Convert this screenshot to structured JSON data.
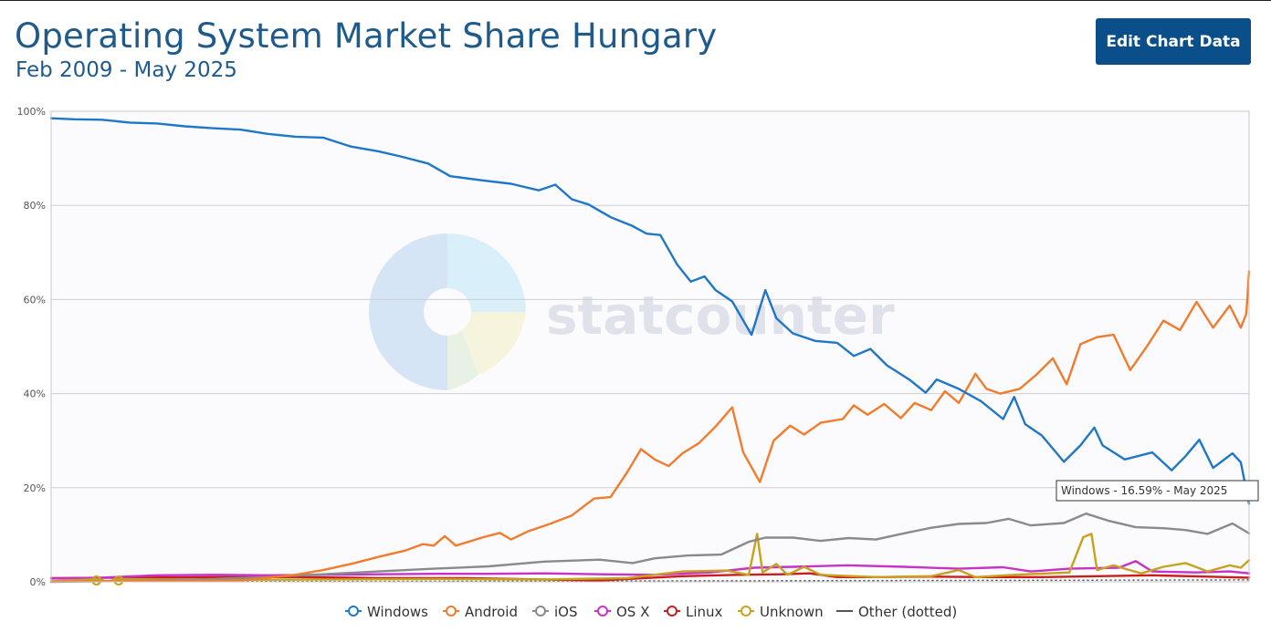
{
  "header": {
    "title": "Operating System Market Share Hungary",
    "subtitle": "Feb 2009 - May 2025",
    "edit_button": "Edit Chart Data"
  },
  "watermark": "statcounter",
  "tooltip": "Windows - 16.59% - May 2025",
  "chart_data": {
    "type": "line",
    "title": "Operating System Market Share Hungary",
    "subtitle": "Feb 2009 - May 2025",
    "x_range": [
      "Feb 2009",
      "May 2025"
    ],
    "ylim": [
      0,
      100
    ],
    "y_ticks": [
      "0%",
      "20%",
      "40%",
      "60%",
      "80%",
      "100%"
    ],
    "y_tick_values": [
      0,
      20,
      40,
      60,
      80,
      100
    ],
    "grid": true,
    "legend_position": "bottom",
    "series": [
      {
        "name": "Windows",
        "color": "#1f77c8",
        "dotted": false,
        "points": [
          [
            2009.08,
            98.5
          ],
          [
            2009.5,
            98.3
          ],
          [
            2010.0,
            98.2
          ],
          [
            2010.5,
            97.6
          ],
          [
            2011.0,
            97.4
          ],
          [
            2011.5,
            96.8
          ],
          [
            2012.0,
            96.4
          ],
          [
            2012.5,
            96.1
          ],
          [
            2013.0,
            95.2
          ],
          [
            2013.5,
            94.6
          ],
          [
            2014.0,
            94.4
          ],
          [
            2014.5,
            92.5
          ],
          [
            2015.0,
            91.5
          ],
          [
            2015.4,
            90.4
          ],
          [
            2015.9,
            88.9
          ],
          [
            2016.3,
            86.2
          ],
          [
            2016.9,
            85.3
          ],
          [
            2017.4,
            84.6
          ],
          [
            2017.9,
            83.2
          ],
          [
            2018.2,
            84.4
          ],
          [
            2018.5,
            81.3
          ],
          [
            2018.8,
            80.2
          ],
          [
            2019.2,
            77.5
          ],
          [
            2019.6,
            75.6
          ],
          [
            2019.85,
            74.0
          ],
          [
            2020.1,
            73.7
          ],
          [
            2020.4,
            67.5
          ],
          [
            2020.65,
            63.8
          ],
          [
            2020.9,
            64.9
          ],
          [
            2021.1,
            62.0
          ],
          [
            2021.4,
            59.6
          ],
          [
            2021.75,
            52.5
          ],
          [
            2022.0,
            62.0
          ],
          [
            2022.2,
            56.0
          ],
          [
            2022.5,
            52.8
          ],
          [
            2022.9,
            51.2
          ],
          [
            2023.3,
            50.8
          ],
          [
            2023.6,
            48.0
          ],
          [
            2023.9,
            49.5
          ],
          [
            2024.2,
            46.0
          ],
          [
            2024.6,
            43.0
          ],
          [
            2024.9,
            40.2
          ],
          [
            2025.1,
            43.0
          ],
          [
            2025.5,
            41.0
          ],
          [
            2025.9,
            38.4
          ],
          [
            2026.3,
            34.6
          ],
          [
            2026.5,
            39.3
          ],
          [
            2026.7,
            33.5
          ],
          [
            2027.0,
            31.1
          ],
          [
            2027.4,
            25.5
          ],
          [
            2027.7,
            29.0
          ],
          [
            2027.95,
            32.8
          ],
          [
            2028.1,
            29.0
          ],
          [
            2028.5,
            26.0
          ],
          [
            2029.0,
            27.5
          ],
          [
            2029.35,
            23.7
          ],
          [
            2029.6,
            26.7
          ],
          [
            2029.85,
            30.2
          ],
          [
            2030.1,
            24.2
          ],
          [
            2030.45,
            27.3
          ],
          [
            2030.6,
            25.4
          ],
          [
            2030.75,
            16.59
          ]
        ]
      },
      {
        "name": "Android",
        "color": "#f07c2c",
        "dotted": false,
        "points": [
          [
            2009.08,
            0.1
          ],
          [
            2012.5,
            0.3
          ],
          [
            2013.5,
            1.5
          ],
          [
            2014.0,
            2.5
          ],
          [
            2014.5,
            3.8
          ],
          [
            2015.0,
            5.3
          ],
          [
            2015.5,
            6.7
          ],
          [
            2015.8,
            8.0
          ],
          [
            2016.0,
            7.7
          ],
          [
            2016.2,
            9.7
          ],
          [
            2016.4,
            7.7
          ],
          [
            2016.9,
            9.5
          ],
          [
            2017.2,
            10.4
          ],
          [
            2017.4,
            9.0
          ],
          [
            2017.7,
            10.7
          ],
          [
            2018.1,
            12.3
          ],
          [
            2018.5,
            14.1
          ],
          [
            2018.9,
            17.7
          ],
          [
            2019.2,
            18.0
          ],
          [
            2019.5,
            23.3
          ],
          [
            2019.75,
            28.2
          ],
          [
            2020.0,
            26.0
          ],
          [
            2020.25,
            24.6
          ],
          [
            2020.5,
            27.3
          ],
          [
            2020.8,
            29.5
          ],
          [
            2021.1,
            33.0
          ],
          [
            2021.4,
            37.1
          ],
          [
            2021.6,
            27.5
          ],
          [
            2021.9,
            21.2
          ],
          [
            2022.15,
            30.0
          ],
          [
            2022.45,
            33.2
          ],
          [
            2022.7,
            31.3
          ],
          [
            2023.0,
            33.8
          ],
          [
            2023.4,
            34.6
          ],
          [
            2023.6,
            37.5
          ],
          [
            2023.85,
            35.5
          ],
          [
            2024.15,
            37.8
          ],
          [
            2024.45,
            34.8
          ],
          [
            2024.7,
            38.0
          ],
          [
            2025.0,
            36.5
          ],
          [
            2025.25,
            40.5
          ],
          [
            2025.5,
            38.0
          ],
          [
            2025.8,
            44.2
          ],
          [
            2026.0,
            41.0
          ],
          [
            2026.25,
            40.0
          ],
          [
            2026.6,
            41.0
          ],
          [
            2026.9,
            44.0
          ],
          [
            2027.2,
            47.5
          ],
          [
            2027.45,
            42.0
          ],
          [
            2027.7,
            50.5
          ],
          [
            2028.0,
            52.0
          ],
          [
            2028.3,
            52.5
          ],
          [
            2028.6,
            45.0
          ],
          [
            2028.9,
            50.0
          ],
          [
            2029.2,
            55.5
          ],
          [
            2029.5,
            53.5
          ],
          [
            2029.8,
            59.5
          ],
          [
            2030.1,
            54.0
          ],
          [
            2030.4,
            58.7
          ],
          [
            2030.6,
            54.0
          ],
          [
            2030.7,
            57.0
          ],
          [
            2030.75,
            66.0
          ]
        ]
      },
      {
        "name": "iOS",
        "color": "#8a8a8a",
        "dotted": false,
        "points": [
          [
            2009.08,
            0.0
          ],
          [
            2010.5,
            0.2
          ],
          [
            2012.0,
            0.6
          ],
          [
            2013.0,
            1.0
          ],
          [
            2014.0,
            1.6
          ],
          [
            2015.0,
            2.2
          ],
          [
            2016.0,
            2.8
          ],
          [
            2017.0,
            3.3
          ],
          [
            2018.0,
            4.3
          ],
          [
            2019.0,
            4.7
          ],
          [
            2019.6,
            4.0
          ],
          [
            2020.0,
            5.0
          ],
          [
            2020.6,
            5.6
          ],
          [
            2021.2,
            5.8
          ],
          [
            2021.7,
            8.5
          ],
          [
            2022.0,
            9.4
          ],
          [
            2022.5,
            9.4
          ],
          [
            2023.0,
            8.7
          ],
          [
            2023.5,
            9.3
          ],
          [
            2024.0,
            9.0
          ],
          [
            2024.5,
            10.3
          ],
          [
            2025.0,
            11.5
          ],
          [
            2025.5,
            12.3
          ],
          [
            2026.0,
            12.5
          ],
          [
            2026.4,
            13.4
          ],
          [
            2026.8,
            12.0
          ],
          [
            2027.4,
            12.5
          ],
          [
            2027.8,
            14.5
          ],
          [
            2028.2,
            13.0
          ],
          [
            2028.7,
            11.6
          ],
          [
            2029.2,
            11.4
          ],
          [
            2029.6,
            11.0
          ],
          [
            2030.0,
            10.2
          ],
          [
            2030.45,
            12.4
          ],
          [
            2030.75,
            10.3
          ]
        ]
      },
      {
        "name": "OS X",
        "color": "#c832c8",
        "dotted": false,
        "points": [
          [
            2009.08,
            0.7
          ],
          [
            2010.0,
            0.9
          ],
          [
            2011.0,
            1.4
          ],
          [
            2012.0,
            1.5
          ],
          [
            2013.0,
            1.4
          ],
          [
            2014.0,
            1.5
          ],
          [
            2015.0,
            1.6
          ],
          [
            2016.0,
            1.7
          ],
          [
            2017.0,
            1.7
          ],
          [
            2018.0,
            1.8
          ],
          [
            2019.0,
            1.6
          ],
          [
            2020.0,
            1.5
          ],
          [
            2021.0,
            2.0
          ],
          [
            2021.8,
            3.0
          ],
          [
            2022.5,
            3.2
          ],
          [
            2023.5,
            3.5
          ],
          [
            2024.5,
            3.2
          ],
          [
            2025.5,
            2.8
          ],
          [
            2026.3,
            3.1
          ],
          [
            2026.8,
            2.2
          ],
          [
            2027.5,
            2.8
          ],
          [
            2028.4,
            3.0
          ],
          [
            2028.7,
            4.4
          ],
          [
            2029.0,
            2.2
          ],
          [
            2029.8,
            2.0
          ],
          [
            2030.4,
            2.2
          ],
          [
            2030.75,
            1.8
          ]
        ]
      },
      {
        "name": "Linux",
        "color": "#c81e1e",
        "dotted": false,
        "points": [
          [
            2009.08,
            0.8
          ],
          [
            2010.5,
            0.9
          ],
          [
            2012.0,
            1.0
          ],
          [
            2013.5,
            1.0
          ],
          [
            2015.0,
            0.8
          ],
          [
            2016.5,
            0.8
          ],
          [
            2018.0,
            0.5
          ],
          [
            2019.0,
            0.3
          ],
          [
            2019.8,
            0.8
          ],
          [
            2020.5,
            1.2
          ],
          [
            2021.5,
            1.5
          ],
          [
            2022.3,
            1.6
          ],
          [
            2022.8,
            1.8
          ],
          [
            2023.3,
            1.0
          ],
          [
            2024.0,
            1.0
          ],
          [
            2025.0,
            1.1
          ],
          [
            2026.0,
            1.0
          ],
          [
            2027.0,
            1.0
          ],
          [
            2028.0,
            1.2
          ],
          [
            2029.0,
            1.4
          ],
          [
            2030.0,
            1.1
          ],
          [
            2030.75,
            0.9
          ]
        ]
      },
      {
        "name": "Unknown",
        "color": "#c8a21e",
        "dotted": false,
        "points": [
          [
            2009.08,
            0.1
          ],
          [
            2009.9,
            0.6
          ],
          [
            2010.1,
            0.1
          ],
          [
            2010.3,
            0.6
          ],
          [
            2012.0,
            0.4
          ],
          [
            2014.0,
            0.5
          ],
          [
            2016.0,
            0.6
          ],
          [
            2018.0,
            0.5
          ],
          [
            2019.5,
            0.8
          ],
          [
            2020.5,
            2.2
          ],
          [
            2021.3,
            2.4
          ],
          [
            2021.7,
            1.5
          ],
          [
            2021.85,
            10.2
          ],
          [
            2021.95,
            2.0
          ],
          [
            2022.2,
            3.8
          ],
          [
            2022.4,
            1.5
          ],
          [
            2022.7,
            3.2
          ],
          [
            2023.0,
            1.5
          ],
          [
            2024.0,
            1.0
          ],
          [
            2025.0,
            1.2
          ],
          [
            2025.5,
            2.5
          ],
          [
            2025.8,
            1.0
          ],
          [
            2026.5,
            1.5
          ],
          [
            2027.5,
            2.0
          ],
          [
            2027.75,
            9.5
          ],
          [
            2027.9,
            10.2
          ],
          [
            2028.0,
            2.5
          ],
          [
            2028.3,
            3.5
          ],
          [
            2028.5,
            2.8
          ],
          [
            2028.8,
            1.8
          ],
          [
            2029.2,
            3.2
          ],
          [
            2029.6,
            4.0
          ],
          [
            2030.0,
            2.2
          ],
          [
            2030.4,
            3.5
          ],
          [
            2030.6,
            3.0
          ],
          [
            2030.75,
            4.6
          ]
        ]
      },
      {
        "name": "Other (dotted)",
        "color": "#555555",
        "dotted": true,
        "points": [
          [
            2009.08,
            0.1
          ],
          [
            2015.0,
            0.1
          ],
          [
            2020.0,
            0.2
          ],
          [
            2025.0,
            0.3
          ],
          [
            2030.75,
            0.4
          ]
        ]
      }
    ]
  }
}
